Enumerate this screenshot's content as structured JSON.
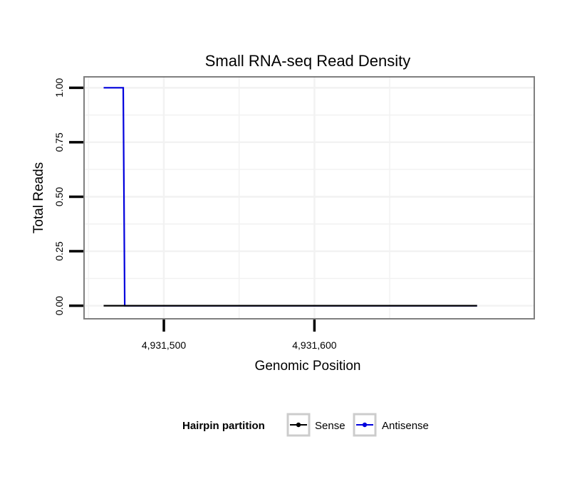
{
  "chart_data": {
    "type": "line",
    "step": true,
    "title": "Small RNA-seq Read Density",
    "xlabel": "Genomic Position",
    "ylabel": "Total Reads",
    "xlim": [
      4931447,
      4931746
    ],
    "ylim": [
      -0.06,
      1.05
    ],
    "x_ticks": [
      4931500,
      4931600
    ],
    "x_tick_labels": [
      "4,931,500",
      "4,931,600"
    ],
    "y_ticks": [
      0,
      0.25,
      0.5,
      0.75,
      1.0
    ],
    "y_tick_labels": [
      "0.00",
      "0.25",
      "0.50",
      "0.75",
      "1.00"
    ],
    "grid": true,
    "series": [
      {
        "name": "Sense",
        "color": "#000000",
        "x": [
          4931460,
          4931708
        ],
        "y": [
          0,
          0
        ]
      },
      {
        "name": "Antisense",
        "color": "#0000dd",
        "x": [
          4931460,
          4931473,
          4931474,
          4931708
        ],
        "y": [
          1,
          1,
          0,
          0
        ]
      }
    ],
    "legend": {
      "title": "Hairpin partition",
      "position": "bottom",
      "entries": [
        "Sense",
        "Antisense"
      ]
    }
  }
}
